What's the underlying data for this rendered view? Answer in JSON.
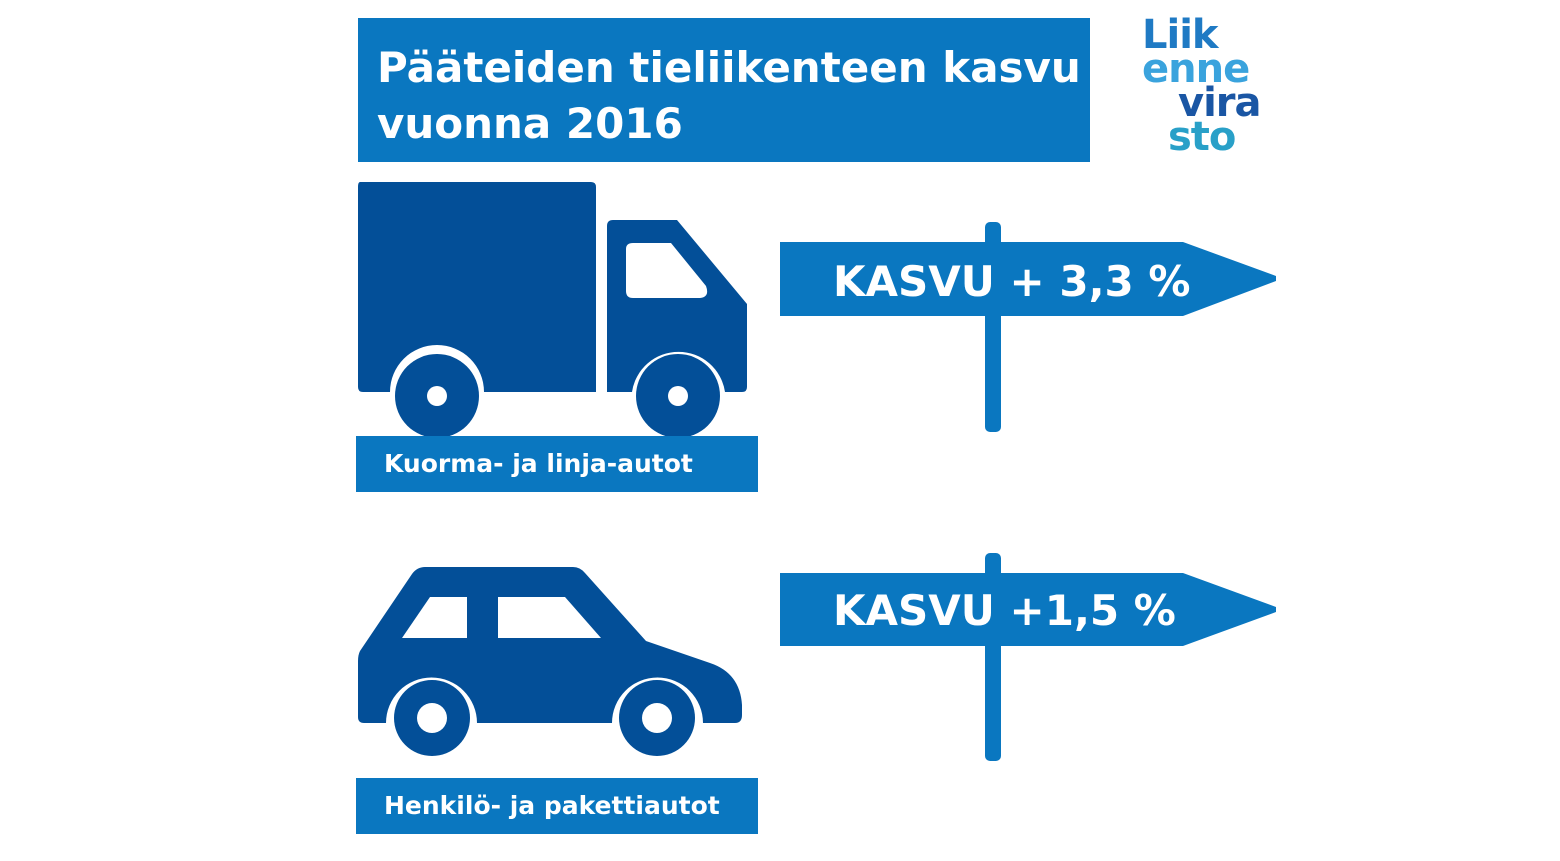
{
  "title": {
    "line1": "Pääteiden tieliikenteen kasvu",
    "line2": "vuonna 2016"
  },
  "logo": {
    "line1": "Liik",
    "line2": "enne",
    "line3": "vira",
    "line4": "sto"
  },
  "rows": [
    {
      "icon": "truck-icon",
      "label": "Kuorma- ja linja-autot",
      "growth_text": "KASVU + 3,3 %",
      "growth_percent": 3.3
    },
    {
      "icon": "car-icon",
      "label": "Henkilö- ja pakettiautot",
      "growth_text": "KASVU +1,5 %",
      "growth_percent": 1.5
    }
  ],
  "colors": {
    "primary_blue": "#0a77c0",
    "dark_blue": "#034f98",
    "white": "#ffffff"
  }
}
